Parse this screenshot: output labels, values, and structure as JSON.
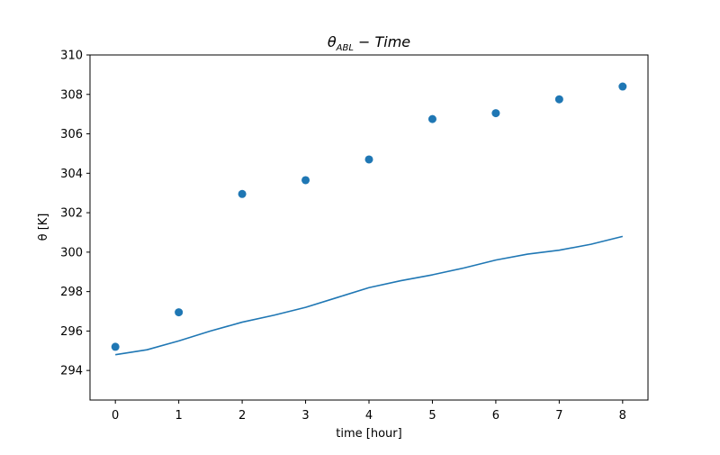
{
  "chart_data": {
    "type": "line",
    "title": {
      "main": "θ",
      "subscript": "ABL",
      "rest": " − Time"
    },
    "xlabel": "time [hour]",
    "ylabel": "θ [K]",
    "xlim": [
      -0.4,
      8.4
    ],
    "ylim": [
      292.5,
      310
    ],
    "xticks": [
      0,
      1,
      2,
      3,
      4,
      5,
      6,
      7,
      8
    ],
    "yticks": [
      294,
      296,
      298,
      300,
      302,
      304,
      306,
      308,
      310
    ],
    "grid": false,
    "colors": {
      "series": "#1f77b4"
    },
    "series": [
      {
        "kind": "scatter",
        "x": [
          0,
          1,
          2,
          3,
          4,
          5,
          6,
          7,
          8
        ],
        "y": [
          295.2,
          296.95,
          302.95,
          303.65,
          304.7,
          306.75,
          307.05,
          307.75,
          308.4
        ]
      },
      {
        "kind": "line",
        "x": [
          0,
          0.5,
          1,
          1.5,
          2,
          2.5,
          3,
          3.5,
          4,
          4.5,
          5,
          5.5,
          6,
          6.5,
          7,
          7.5,
          8
        ],
        "y": [
          294.8,
          295.05,
          295.5,
          296.0,
          296.45,
          296.8,
          297.2,
          297.7,
          298.2,
          298.55,
          298.85,
          299.2,
          299.6,
          299.9,
          300.1,
          300.4,
          300.8
        ]
      }
    ]
  }
}
